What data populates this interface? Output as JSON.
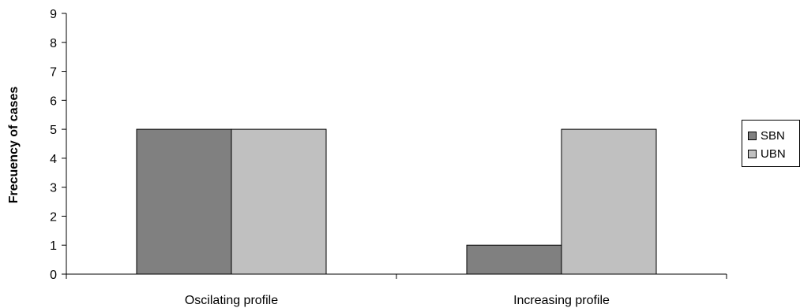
{
  "chart_data": {
    "type": "bar",
    "categories": [
      "Oscilating profile",
      "Increasing profile"
    ],
    "series": [
      {
        "name": "SBN",
        "values": [
          5,
          1
        ],
        "color": "#808080"
      },
      {
        "name": "UBN",
        "values": [
          5,
          5
        ],
        "color": "#c0c0c0"
      }
    ],
    "ylabel": "Frecuency of cases",
    "xlabel": "",
    "ylim": [
      0,
      9
    ],
    "yticks": [
      0,
      1,
      2,
      3,
      4,
      5,
      6,
      7,
      8,
      9
    ],
    "grid": false,
    "legend_position": "right"
  }
}
